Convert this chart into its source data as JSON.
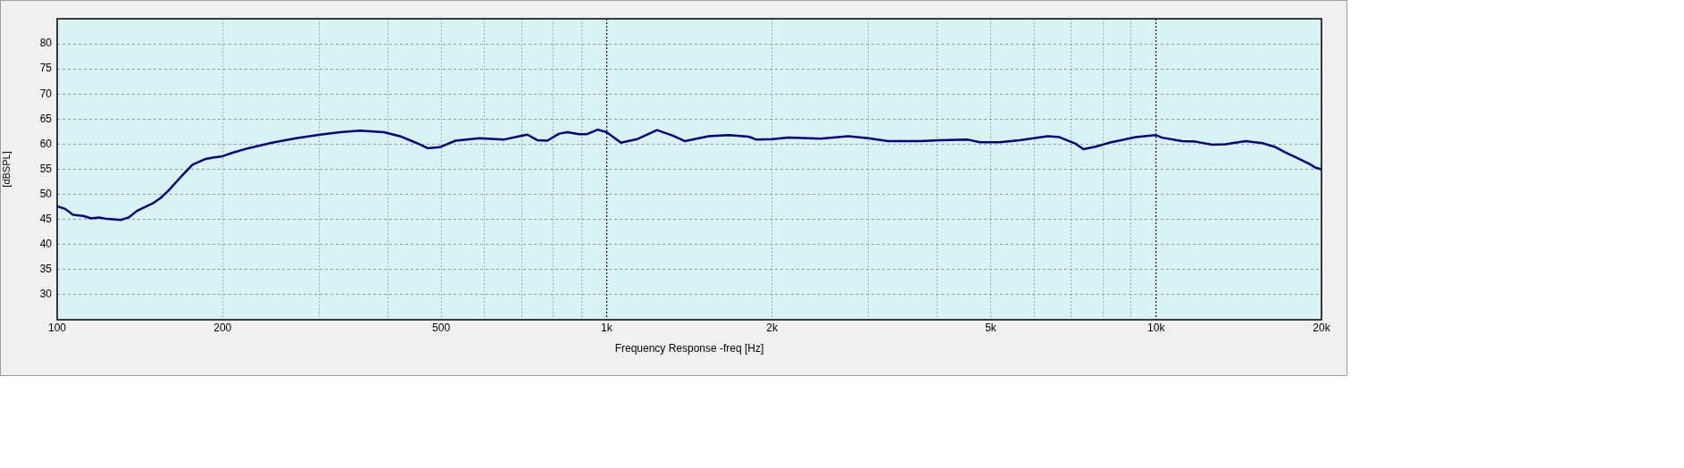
{
  "chart_data": {
    "type": "line",
    "xlabel": "Frequency Response -freq [Hz]",
    "ylabel": "[dBSPL]",
    "x": [
      100,
      103.4,
      106.9,
      111.5,
      115.3,
      119.2,
      123.2,
      130.6,
      135,
      139.7,
      149.3,
      154.4,
      159.6,
      167.7,
      176.4,
      185.5,
      191.8,
      200,
      208.6,
      222.9,
      246.2,
      272.3,
      301.1,
      327.3,
      355.7,
      393.2,
      420.4,
      449.5,
      472.5,
      496.8,
      531.1,
      587.1,
      649.1,
      694,
      717.5,
      747.8,
      779.8,
      820,
      847.7,
      891.2,
      921.5,
      963.9,
      1000,
      1062,
      1136,
      1235,
      1320,
      1388,
      1534,
      1668,
      1813,
      1875,
      2005,
      2144,
      2451,
      2753,
      2993,
      3252,
      3718,
      4047,
      4546,
      4778,
      5195,
      5649,
      6349,
      6670,
      7134,
      7375,
      7758,
      8296,
      9180,
      10000,
      10254,
      11150,
      11798,
      12653,
      13381,
      14555,
      15610,
      16510,
      17220,
      17960,
      18990,
      19530,
      20000
    ],
    "values": [
      47.6,
      47.1,
      45.9,
      45.7,
      45.2,
      45.4,
      45.1,
      44.9,
      45.4,
      46.7,
      48.2,
      49.3,
      50.8,
      53.4,
      55.9,
      57,
      57.3,
      57.6,
      58.3,
      59.2,
      60.3,
      61.2,
      61.9,
      62.4,
      62.7,
      62.4,
      61.6,
      60.3,
      59.2,
      59.4,
      60.7,
      61.2,
      60.9,
      61.6,
      61.9,
      60.8,
      60.7,
      62.1,
      62.4,
      62,
      62,
      62.9,
      62.4,
      60.3,
      61,
      62.8,
      61.7,
      60.6,
      61.6,
      61.8,
      61.5,
      60.9,
      61,
      61.3,
      61.1,
      61.6,
      61.2,
      60.6,
      60.6,
      60.8,
      60.9,
      60.4,
      60.4,
      60.8,
      61.6,
      61.4,
      60.1,
      59,
      59.5,
      60.4,
      61.4,
      61.8,
      61.3,
      60.6,
      60.5,
      59.9,
      60,
      60.6,
      60.2,
      59.4,
      58.3,
      57.4,
      56.1,
      55.3,
      55
    ],
    "color": "#00008b",
    "log": "x",
    "xlim": [
      100,
      20000
    ],
    "xticks": [
      100,
      200,
      {
        "value": 300,
        "label": null
      },
      {
        "value": 400,
        "label": null
      },
      500,
      {
        "value": 600,
        "label": null
      },
      {
        "value": 700,
        "label": null
      },
      {
        "value": 800,
        "label": null
      },
      {
        "value": 900,
        "label": null
      },
      {
        "value": 1000,
        "label": "1k"
      },
      {
        "value": 2000,
        "label": "2k"
      },
      {
        "value": 3000,
        "label": null
      },
      {
        "value": 4000,
        "label": null
      },
      {
        "value": 5000,
        "label": "5k"
      },
      {
        "value": 6000,
        "label": null
      },
      {
        "value": 7000,
        "label": null
      },
      {
        "value": 8000,
        "label": null
      },
      {
        "value": 9000,
        "label": null
      },
      {
        "value": 10000,
        "label": "10k"
      },
      {
        "value": 20000,
        "label": "20k"
      }
    ],
    "ylim": [
      25,
      85
    ],
    "yticks": [
      30,
      35,
      40,
      45,
      50,
      55,
      60,
      65,
      70,
      75,
      80
    ],
    "grid": true,
    "legend": false,
    "marker": "none",
    "line_style": "solid"
  }
}
